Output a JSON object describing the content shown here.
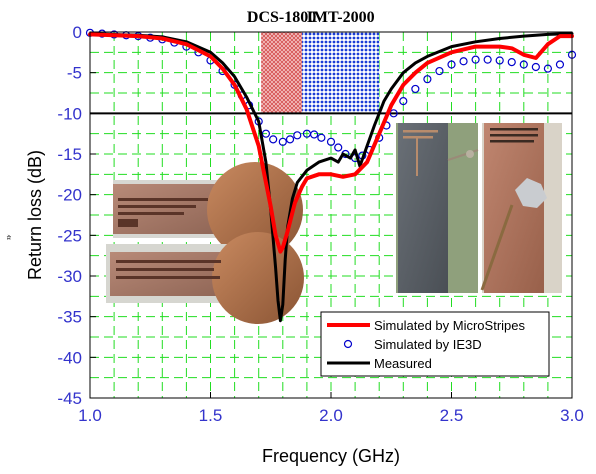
{
  "chart_data": {
    "type": "line",
    "xlabel": "Frequency (GHz)",
    "ylabel": "Return loss (dB)",
    "xlim": [
      1.0,
      3.0
    ],
    "ylim": [
      -45,
      0
    ],
    "x_ticks": [
      "1.0",
      "1.5",
      "2.0",
      "2.5",
      "3.0"
    ],
    "y_ticks": [
      "0",
      "-5",
      "-10",
      "-15",
      "-20",
      "-25",
      "-30",
      "-35",
      "-40",
      "-45"
    ],
    "grid": true,
    "reference_line": -10,
    "bands": [
      {
        "label": "DCS-1800",
        "x": [
          1.71,
          1.88
        ],
        "color": "#e06060"
      },
      {
        "label": "IMT-2000",
        "x": [
          1.88,
          2.2
        ],
        "color": "#2040d0"
      }
    ],
    "legend_position": "bottom-right",
    "series": [
      {
        "name": "Simulated by MicroStripes",
        "style": "line",
        "color": "#ff0000",
        "x": [
          1.0,
          1.2,
          1.3,
          1.4,
          1.5,
          1.55,
          1.6,
          1.65,
          1.7,
          1.72,
          1.75,
          1.77,
          1.79,
          1.8,
          1.82,
          1.85,
          1.88,
          1.9,
          1.95,
          2.0,
          2.05,
          2.1,
          2.15,
          2.2,
          2.25,
          2.3,
          2.35,
          2.4,
          2.5,
          2.6,
          2.7,
          2.75,
          2.8,
          2.85,
          2.9,
          2.95,
          3.0
        ],
        "y": [
          -0.3,
          -0.5,
          -0.8,
          -1.5,
          -3.0,
          -4.5,
          -6.5,
          -9.5,
          -14.0,
          -17.0,
          -21.5,
          -25.0,
          -27.0,
          -26.5,
          -24.5,
          -21.0,
          -19.0,
          -18.0,
          -17.5,
          -17.5,
          -17.8,
          -17.5,
          -16.0,
          -12.5,
          -9.0,
          -6.5,
          -5.0,
          -3.8,
          -2.5,
          -1.8,
          -1.8,
          -2.0,
          -2.8,
          -3.2,
          -1.5,
          -0.5,
          -0.5
        ]
      },
      {
        "name": "Simulated by IE3D",
        "style": "markers",
        "color": "#0000cc",
        "x": [
          1.0,
          1.05,
          1.1,
          1.15,
          1.2,
          1.25,
          1.3,
          1.35,
          1.4,
          1.45,
          1.5,
          1.55,
          1.6,
          1.63,
          1.66,
          1.7,
          1.73,
          1.76,
          1.8,
          1.83,
          1.86,
          1.9,
          1.93,
          1.96,
          2.0,
          2.03,
          2.06,
          2.1,
          2.13,
          2.16,
          2.2,
          2.23,
          2.26,
          2.3,
          2.35,
          2.4,
          2.45,
          2.5,
          2.55,
          2.6,
          2.65,
          2.7,
          2.75,
          2.8,
          2.85,
          2.9,
          2.95,
          3.0
        ],
        "y": [
          -0.1,
          -0.2,
          -0.3,
          -0.4,
          -0.5,
          -0.7,
          -0.9,
          -1.3,
          -1.8,
          -2.5,
          -3.5,
          -4.8,
          -6.5,
          -7.8,
          -9.0,
          -11.0,
          -12.5,
          -13.2,
          -13.5,
          -13.2,
          -12.7,
          -12.5,
          -12.6,
          -13.0,
          -13.5,
          -14.2,
          -15.0,
          -15.5,
          -15.2,
          -14.5,
          -13.0,
          -11.5,
          -10.0,
          -8.5,
          -7.0,
          -5.8,
          -4.8,
          -4.0,
          -3.6,
          -3.4,
          -3.4,
          -3.5,
          -3.7,
          -4.0,
          -4.3,
          -4.5,
          -4.0,
          -2.8
        ]
      },
      {
        "name": "Measured",
        "style": "line",
        "color": "#000000",
        "x": [
          1.0,
          1.2,
          1.3,
          1.4,
          1.5,
          1.55,
          1.6,
          1.65,
          1.7,
          1.73,
          1.75,
          1.77,
          1.78,
          1.79,
          1.8,
          1.81,
          1.82,
          1.84,
          1.86,
          1.9,
          1.95,
          2.0,
          2.03,
          2.05,
          2.08,
          2.1,
          2.12,
          2.15,
          2.18,
          2.2,
          2.22,
          2.25,
          2.3,
          2.35,
          2.4,
          2.5,
          2.6,
          2.7,
          2.8,
          2.9,
          3.0
        ],
        "y": [
          -0.2,
          -0.4,
          -0.6,
          -1.2,
          -2.5,
          -3.8,
          -5.5,
          -8.0,
          -11.0,
          -16.0,
          -22.0,
          -29.0,
          -33.0,
          -35.5,
          -33.5,
          -28.0,
          -24.0,
          -20.5,
          -18.5,
          -17.0,
          -16.0,
          -15.5,
          -16.0,
          -15.0,
          -15.5,
          -14.5,
          -16.5,
          -14.0,
          -11.5,
          -10.0,
          -8.5,
          -7.0,
          -5.0,
          -3.8,
          -3.0,
          -1.8,
          -1.2,
          -0.8,
          -0.5,
          -0.3,
          -0.2
        ]
      }
    ]
  },
  "photos": [
    {
      "name": "antenna-photo-coin-top"
    },
    {
      "name": "antenna-photo-coin-bottom"
    },
    {
      "name": "antenna-photo-grey-board"
    },
    {
      "name": "antenna-photo-copper-board"
    }
  ],
  "stray_marks": {
    "ylabel_mark": "ਜੋ"
  }
}
